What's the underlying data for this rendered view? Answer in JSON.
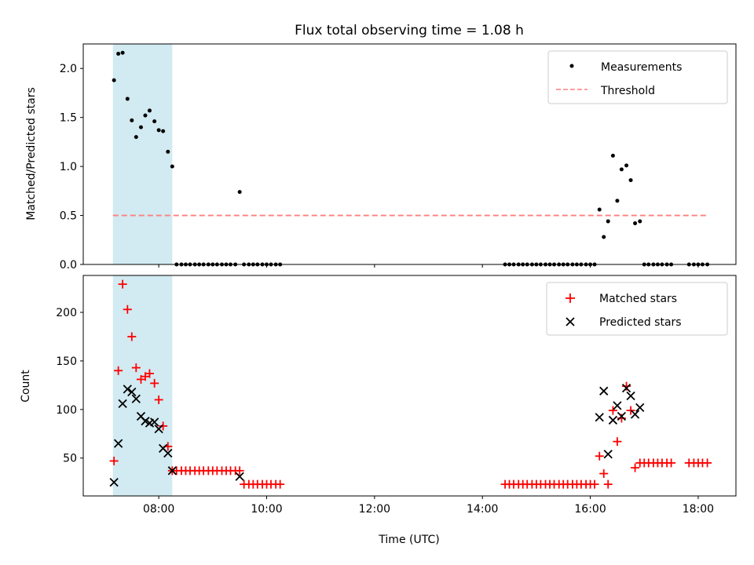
{
  "figure_title": "Flux total observing time = 1.08 h",
  "xlabel": "Time (UTC)",
  "x_tick_labels": [
    "08:00",
    "10:00",
    "12:00",
    "14:00",
    "16:00",
    "18:00"
  ],
  "chart_data": [
    {
      "type": "scatter",
      "panel": "top",
      "ylabel": "Matched/Predicted stars",
      "xlim_hours": [
        6.6,
        18.7
      ],
      "ylim": [
        0,
        2.25
      ],
      "y_ticks": [
        "0.0",
        "0.5",
        "1.0",
        "1.5",
        "2.0"
      ],
      "highlight_span_hours": [
        7.15,
        8.25
      ],
      "highlight_color": "#add8e6",
      "threshold": {
        "name": "Threshold",
        "value": 0.5,
        "x_range_hours": [
          7.15,
          18.2
        ],
        "color": "#ff7f7f",
        "style": "dashed"
      },
      "legend": {
        "position": "upper right",
        "entries": [
          "Measurements",
          "Threshold"
        ]
      },
      "series": [
        {
          "name": "Measurements",
          "color": "#000000",
          "x_hours": [
            7.17,
            7.25,
            7.33,
            7.42,
            7.5,
            7.58,
            7.67,
            7.75,
            7.83,
            7.92,
            8.0,
            8.08,
            8.17,
            8.25,
            8.33,
            8.42,
            8.5,
            8.58,
            8.67,
            8.75,
            8.83,
            8.92,
            9.0,
            9.08,
            9.17,
            9.25,
            9.33,
            9.42,
            9.5,
            9.58,
            9.67,
            9.75,
            9.83,
            9.92,
            10.0,
            10.08,
            10.17,
            10.25,
            14.42,
            14.5,
            14.58,
            14.67,
            14.75,
            14.83,
            14.92,
            15.0,
            15.08,
            15.17,
            15.25,
            15.33,
            15.42,
            15.5,
            15.58,
            15.67,
            15.75,
            15.83,
            15.92,
            16.0,
            16.08,
            16.17,
            16.25,
            16.33,
            16.42,
            16.5,
            16.58,
            16.67,
            16.75,
            16.83,
            16.92,
            17.0,
            17.08,
            17.17,
            17.25,
            17.33,
            17.42,
            17.5,
            17.83,
            17.92,
            18.0,
            18.08,
            18.17
          ],
          "y": [
            1.88,
            2.15,
            2.16,
            1.69,
            1.47,
            1.3,
            1.4,
            1.52,
            1.57,
            1.46,
            1.37,
            1.36,
            1.15,
            1.0,
            0,
            0,
            0,
            0,
            0,
            0,
            0,
            0,
            0,
            0,
            0,
            0,
            0,
            0,
            0.74,
            0,
            0,
            0,
            0,
            0,
            0,
            0,
            0,
            0,
            0,
            0,
            0,
            0,
            0,
            0,
            0,
            0,
            0,
            0,
            0,
            0,
            0,
            0,
            0,
            0,
            0,
            0,
            0,
            0,
            0,
            0.56,
            0.28,
            0.44,
            1.11,
            0.65,
            0.97,
            1.01,
            0.86,
            0.42,
            0.44,
            0,
            0,
            0,
            0,
            0,
            0,
            0,
            0,
            0,
            0,
            0,
            0
          ]
        }
      ]
    },
    {
      "type": "scatter",
      "panel": "bottom",
      "ylabel": "Count",
      "xlim_hours": [
        6.6,
        18.7
      ],
      "ylim": [
        11,
        238
      ],
      "y_ticks": [
        "50",
        "100",
        "150",
        "200"
      ],
      "highlight_span_hours": [
        7.15,
        8.25
      ],
      "highlight_color": "#add8e6",
      "legend": {
        "position": "upper right",
        "entries": [
          "Matched stars",
          "Predicted stars"
        ]
      },
      "series": [
        {
          "name": "Matched stars",
          "marker": "+",
          "color": "#ff0000",
          "x_hours": [
            7.17,
            7.25,
            7.33,
            7.42,
            7.5,
            7.58,
            7.67,
            7.75,
            7.83,
            7.92,
            8.0,
            8.08,
            8.17,
            8.25,
            8.33,
            8.42,
            8.5,
            8.58,
            8.67,
            8.75,
            8.83,
            8.92,
            9.0,
            9.08,
            9.17,
            9.25,
            9.33,
            9.42,
            9.5,
            9.58,
            9.67,
            9.75,
            9.83,
            9.92,
            10.0,
            10.08,
            10.17,
            10.25,
            14.42,
            14.5,
            14.58,
            14.67,
            14.75,
            14.83,
            14.92,
            15.0,
            15.08,
            15.17,
            15.25,
            15.33,
            15.42,
            15.5,
            15.58,
            15.67,
            15.75,
            15.83,
            15.92,
            16.0,
            16.08,
            16.17,
            16.25,
            16.33,
            16.42,
            16.5,
            16.58,
            16.67,
            16.75,
            16.83,
            16.92,
            17.0,
            17.08,
            17.17,
            17.25,
            17.33,
            17.42,
            17.5,
            17.83,
            17.92,
            18.0,
            18.08,
            18.17
          ],
          "y": [
            47,
            140,
            229,
            203,
            175,
            143,
            131,
            134,
            137,
            127,
            110,
            83,
            62,
            37,
            37,
            37,
            37,
            37,
            37,
            37,
            37,
            37,
            37,
            37,
            37,
            37,
            37,
            37,
            37,
            23,
            23,
            23,
            23,
            23,
            23,
            23,
            23,
            23,
            23,
            23,
            23,
            23,
            23,
            23,
            23,
            23,
            23,
            23,
            23,
            23,
            23,
            23,
            23,
            23,
            23,
            23,
            23,
            23,
            23,
            52,
            34,
            23,
            99,
            67,
            91,
            124,
            99,
            40,
            45,
            45,
            45,
            45,
            45,
            45,
            45,
            45,
            45,
            45,
            45,
            45,
            45
          ]
        },
        {
          "name": "Predicted stars",
          "marker": "x",
          "color": "#000000",
          "x_hours": [
            7.17,
            7.25,
            7.33,
            7.42,
            7.5,
            7.58,
            7.67,
            7.75,
            7.83,
            7.92,
            8.0,
            8.08,
            8.17,
            8.25,
            9.5,
            16.17,
            16.25,
            16.33,
            16.42,
            16.5,
            16.58,
            16.67,
            16.75,
            16.83,
            16.92
          ],
          "y": [
            25,
            65,
            106,
            121,
            118,
            111,
            93,
            88,
            86,
            87,
            80,
            60,
            55,
            37,
            31,
            92,
            119,
            54,
            89,
            104,
            93,
            122,
            114,
            95,
            102
          ]
        }
      ]
    }
  ]
}
